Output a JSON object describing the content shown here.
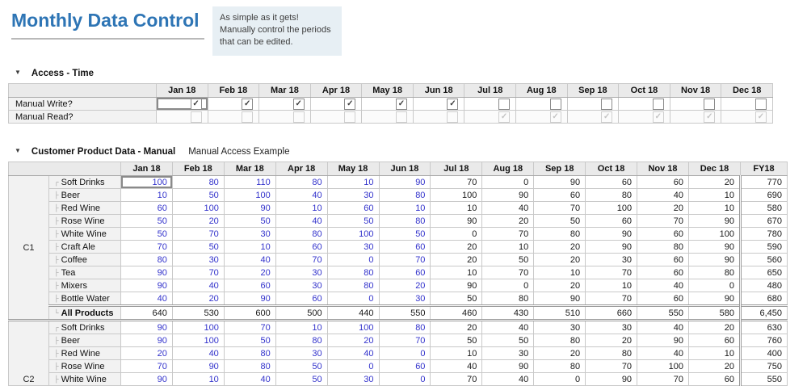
{
  "page": {
    "title": "Monthly Data Control",
    "note": "As simple as it gets! Manually control the periods that can be edited."
  },
  "colors": {
    "accent": "#2E75B5",
    "editable_text": "#3333cc",
    "note_bg": "#e7eff4",
    "header_bg": "#eaeaea",
    "label_bg": "#f2f2f2"
  },
  "months": [
    "Jan 18",
    "Feb 18",
    "Mar 18",
    "Apr 18",
    "May 18",
    "Jun 18",
    "Jul 18",
    "Aug 18",
    "Sep 18",
    "Oct 18",
    "Nov 18",
    "Dec 18"
  ],
  "access": {
    "title": "Access - Time",
    "rows": [
      {
        "label": "Manual Write?",
        "enabled": true,
        "selected_index": 0,
        "checked": [
          true,
          true,
          true,
          true,
          true,
          true,
          false,
          false,
          false,
          false,
          false,
          false
        ]
      },
      {
        "label": "Manual Read?",
        "enabled": false,
        "selected_index": -1,
        "checked": [
          false,
          false,
          false,
          false,
          false,
          false,
          true,
          true,
          true,
          true,
          true,
          true
        ]
      }
    ]
  },
  "grid": {
    "title": "Customer Product Data - Manual",
    "subtitle": "Manual Access Example",
    "fy_column": "FY18",
    "editable_columns": 6,
    "selected": {
      "group": 0,
      "row": 0,
      "col": 0
    },
    "groups": [
      {
        "name": "C1",
        "products": [
          {
            "label": "Soft Drinks",
            "values": [
              100,
              80,
              110,
              80,
              10,
              90,
              70,
              0,
              90,
              60,
              60,
              20
            ],
            "fy": 770
          },
          {
            "label": "Beer",
            "values": [
              10,
              50,
              100,
              40,
              30,
              80,
              100,
              90,
              60,
              80,
              40,
              10
            ],
            "fy": 690
          },
          {
            "label": "Red Wine",
            "values": [
              60,
              100,
              90,
              10,
              60,
              10,
              10,
              40,
              70,
              100,
              20,
              10
            ],
            "fy": 580
          },
          {
            "label": "Rose Wine",
            "values": [
              50,
              20,
              50,
              40,
              50,
              80,
              90,
              20,
              50,
              60,
              70,
              90
            ],
            "fy": 670
          },
          {
            "label": "White Wine",
            "values": [
              50,
              70,
              30,
              80,
              100,
              50,
              0,
              70,
              80,
              90,
              60,
              100
            ],
            "fy": 780
          },
          {
            "label": "Craft Ale",
            "values": [
              70,
              50,
              10,
              60,
              30,
              60,
              20,
              10,
              20,
              90,
              80,
              90
            ],
            "fy": 590
          },
          {
            "label": "Coffee",
            "values": [
              80,
              30,
              40,
              70,
              0,
              70,
              20,
              50,
              20,
              30,
              60,
              90
            ],
            "fy": 560
          },
          {
            "label": "Tea",
            "values": [
              90,
              70,
              20,
              30,
              80,
              60,
              10,
              70,
              10,
              70,
              60,
              80
            ],
            "fy": 650
          },
          {
            "label": "Mixers",
            "values": [
              90,
              40,
              60,
              30,
              80,
              20,
              90,
              0,
              20,
              10,
              40,
              0
            ],
            "fy": 480
          },
          {
            "label": "Bottle Water",
            "values": [
              40,
              20,
              90,
              60,
              0,
              30,
              50,
              80,
              90,
              70,
              60,
              90
            ],
            "fy": 680
          }
        ],
        "total": {
          "label": "All Products",
          "values": [
            640,
            530,
            600,
            500,
            440,
            550,
            460,
            430,
            510,
            660,
            550,
            580
          ],
          "fy": 6450
        }
      },
      {
        "name": "C2",
        "products": [
          {
            "label": "Soft Drinks",
            "values": [
              90,
              100,
              70,
              10,
              100,
              80,
              20,
              40,
              30,
              30,
              40,
              20
            ],
            "fy": 630
          },
          {
            "label": "Beer",
            "values": [
              90,
              100,
              50,
              80,
              20,
              70,
              50,
              50,
              80,
              20,
              90,
              60
            ],
            "fy": 760
          },
          {
            "label": "Red Wine",
            "values": [
              20,
              40,
              80,
              30,
              40,
              0,
              10,
              30,
              20,
              80,
              40,
              10
            ],
            "fy": 400
          },
          {
            "label": "Rose Wine",
            "values": [
              70,
              90,
              80,
              50,
              0,
              60,
              40,
              90,
              80,
              70,
              100,
              20
            ],
            "fy": 750
          },
          {
            "label": "White Wine",
            "values": [
              90,
              10,
              40,
              50,
              30,
              0,
              70,
              40,
              0,
              90,
              70,
              60
            ],
            "fy": 550
          }
        ],
        "total": null
      }
    ]
  }
}
